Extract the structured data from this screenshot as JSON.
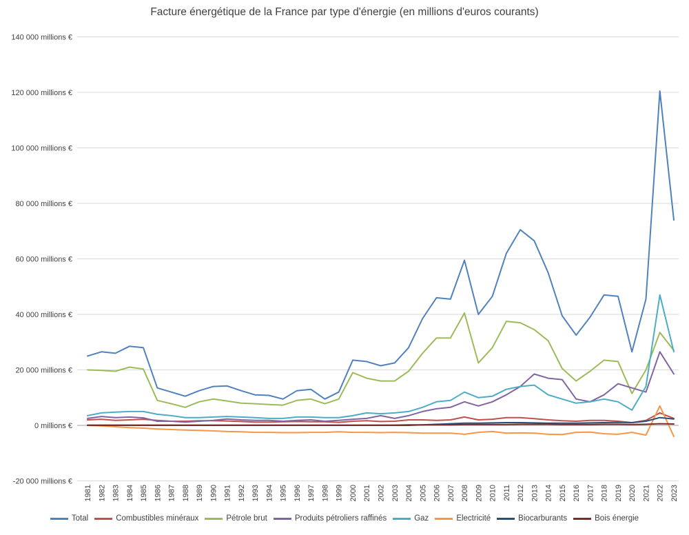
{
  "chart_data": {
    "type": "line",
    "title": "Facture énergétique de la France par type d'énergie (en millions d'euros courants)",
    "y_unit": "millions €",
    "ylim": [
      -20000,
      140000
    ],
    "ytick_step": 20000,
    "grid": true,
    "legend_position": "bottom",
    "yticks": [
      {
        "value": 140000,
        "label": "140 000 millions €"
      },
      {
        "value": 120000,
        "label": "120 000 millions €"
      },
      {
        "value": 100000,
        "label": "100 000 millions €"
      },
      {
        "value": 80000,
        "label": "80 000 millions €"
      },
      {
        "value": 60000,
        "label": "60 000 millions €"
      },
      {
        "value": 40000,
        "label": "40 000 millions €"
      },
      {
        "value": 20000,
        "label": "20 000 millions €"
      },
      {
        "value": 0,
        "label": "0 millions €"
      },
      {
        "value": -20000,
        "label": "-20 000 millions €"
      }
    ],
    "x": [
      "1981",
      "1982",
      "1983",
      "1984",
      "1985",
      "1986",
      "1987",
      "1988",
      "1989",
      "1990",
      "1991",
      "1992",
      "1993",
      "1994",
      "1995",
      "1996",
      "1997",
      "1998",
      "1999",
      "2000",
      "2001",
      "2002",
      "2003",
      "2004",
      "2005",
      "2006",
      "2007",
      "2008",
      "2009",
      "2010",
      "2011",
      "2012",
      "2013",
      "2014",
      "2015",
      "2016",
      "2017",
      "2018",
      "2019",
      "2020",
      "2021",
      "2022",
      "2023"
    ],
    "series": [
      {
        "name": "Total",
        "color": "#4F81BD",
        "values": [
          25000,
          26500,
          26000,
          28500,
          28000,
          13500,
          12000,
          10500,
          12500,
          14000,
          14200,
          12500,
          11000,
          10800,
          9500,
          12500,
          13000,
          9500,
          12000,
          23500,
          23000,
          21500,
          22500,
          28000,
          38500,
          46000,
          45500,
          59500,
          40000,
          46500,
          62000,
          70500,
          66500,
          55000,
          39500,
          32500,
          39000,
          47000,
          46500,
          26500,
          45500,
          120500,
          74000
        ]
      },
      {
        "name": "Combustibles minéraux",
        "color": "#C0504D",
        "values": [
          2000,
          2200,
          1800,
          2000,
          2200,
          1800,
          1500,
          1500,
          1700,
          1700,
          1600,
          1400,
          1200,
          1200,
          1300,
          1400,
          1300,
          1300,
          1100,
          1500,
          1700,
          1400,
          1500,
          2000,
          2000,
          1800,
          2000,
          3000,
          2000,
          2200,
          2800,
          2800,
          2400,
          2000,
          1700,
          1500,
          1800,
          1800,
          1500,
          1000,
          1800,
          4500,
          2500
        ]
      },
      {
        "name": "Pétrole brut",
        "color": "#9BBB59",
        "values": [
          20000,
          19800,
          19500,
          21000,
          20300,
          9000,
          7800,
          6500,
          8500,
          9500,
          8800,
          8000,
          7800,
          7500,
          7300,
          9000,
          9500,
          7800,
          9500,
          19000,
          17000,
          16000,
          16000,
          19500,
          26000,
          31500,
          31500,
          40500,
          22500,
          28000,
          37500,
          37000,
          34500,
          30500,
          20500,
          16000,
          19500,
          23500,
          23000,
          11500,
          20000,
          33500,
          27000
        ]
      },
      {
        "name": "Produits pétroliers raffinés",
        "color": "#8064A2",
        "values": [
          2500,
          3200,
          2800,
          3000,
          2700,
          1500,
          1500,
          1200,
          1500,
          1800,
          2300,
          2000,
          1800,
          1800,
          1500,
          1800,
          2000,
          1500,
          1800,
          2200,
          2500,
          3500,
          2500,
          3500,
          5000,
          6000,
          6500,
          8500,
          7000,
          8500,
          11000,
          14000,
          18500,
          17000,
          16500,
          9500,
          8500,
          11000,
          15000,
          13500,
          12000,
          26500,
          18500
        ]
      },
      {
        "name": "Gaz",
        "color": "#4BACC6",
        "values": [
          3500,
          4500,
          4800,
          5000,
          5000,
          4000,
          3500,
          2800,
          2800,
          3000,
          3200,
          3000,
          2800,
          2500,
          2500,
          3000,
          3000,
          2800,
          2800,
          3500,
          4500,
          4200,
          4500,
          5000,
          6500,
          8500,
          9000,
          12000,
          10000,
          10500,
          13000,
          14000,
          14500,
          11000,
          9500,
          8000,
          8500,
          9500,
          8500,
          5500,
          14000,
          47000,
          26500
        ]
      },
      {
        "name": "Electricité",
        "color": "#F79646",
        "values": [
          0,
          -200,
          -500,
          -800,
          -1000,
          -1300,
          -1500,
          -1700,
          -1800,
          -2000,
          -2200,
          -2300,
          -2500,
          -2500,
          -2600,
          -2600,
          -2500,
          -2500,
          -2300,
          -2500,
          -2500,
          -2600,
          -2500,
          -2600,
          -2800,
          -2800,
          -2800,
          -3200,
          -2500,
          -2200,
          -2800,
          -2700,
          -2800,
          -3200,
          -3300,
          -2500,
          -2400,
          -3000,
          -3200,
          -2500,
          -3500,
          7000,
          -4000
        ]
      },
      {
        "name": "Biocarburants",
        "color": "#2C4D75",
        "values": [
          0,
          0,
          0,
          0,
          0,
          0,
          0,
          0,
          0,
          0,
          0,
          0,
          0,
          0,
          0,
          0,
          0,
          0,
          0,
          0,
          0,
          0,
          0,
          0,
          200,
          400,
          600,
          800,
          800,
          900,
          1000,
          1000,
          900,
          800,
          800,
          800,
          900,
          1000,
          1100,
          1000,
          1500,
          2800,
          2300
        ]
      },
      {
        "name": "Bois énergie",
        "color": "#772C2A",
        "values": [
          100,
          100,
          100,
          100,
          100,
          100,
          100,
          100,
          100,
          100,
          100,
          100,
          100,
          100,
          100,
          100,
          100,
          100,
          100,
          100,
          100,
          100,
          100,
          200,
          200,
          200,
          200,
          300,
          300,
          300,
          300,
          400,
          400,
          400,
          300,
          300,
          300,
          400,
          400,
          300,
          400,
          600,
          500
        ]
      }
    ]
  }
}
